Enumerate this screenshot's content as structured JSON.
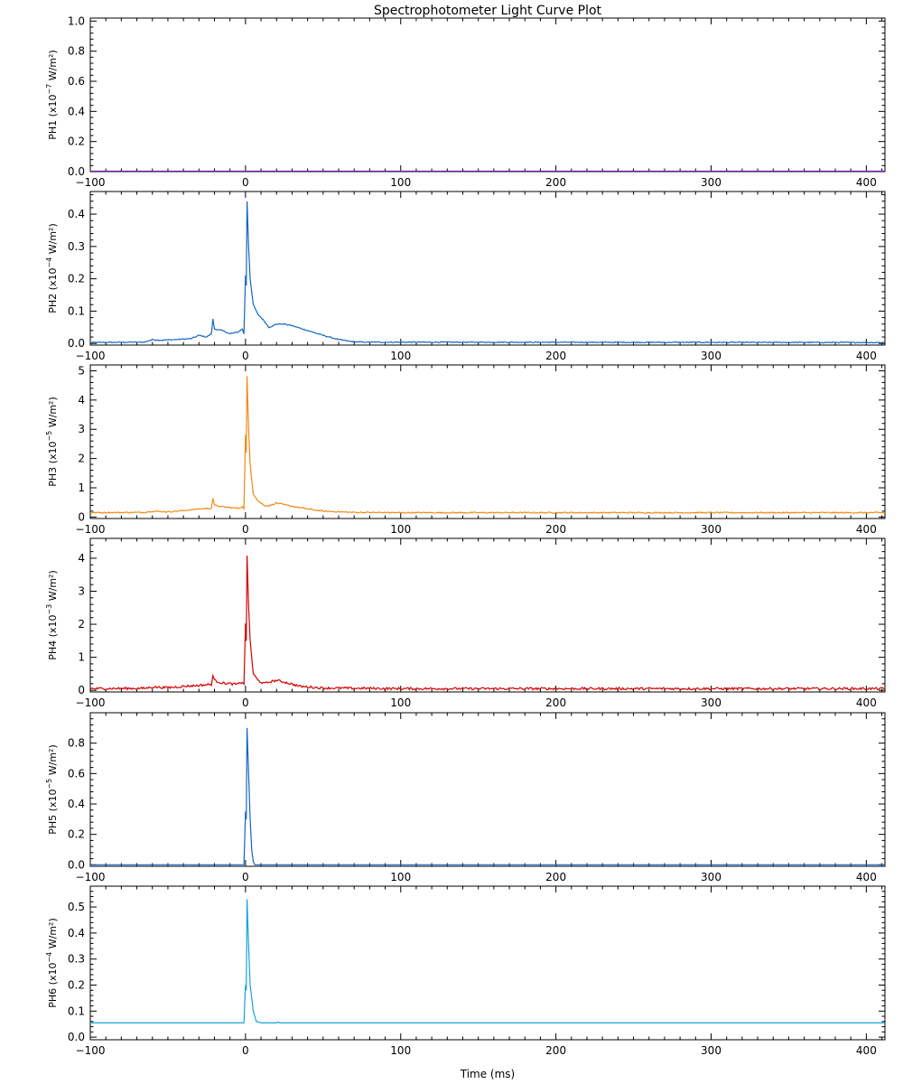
{
  "chart_data": {
    "type": "line",
    "title": "Spectrophotometer Light Curve Plot",
    "xlabel": "Time (ms)",
    "xlim": [
      -100,
      412
    ],
    "xticks": [
      -100,
      0,
      100,
      200,
      300,
      400
    ],
    "panels": [
      {
        "name": "PH1",
        "ylabel_prefix": "PH1   (x10",
        "ylabel_exp": "−7",
        "ylabel_suffix": " W/m²)",
        "ylim": [
          0,
          1.02
        ],
        "yticks": [
          0.0,
          0.2,
          0.4,
          0.6,
          0.8,
          1.0
        ],
        "tick_labels": [
          "0.0",
          "0.2",
          "0.4",
          "0.6",
          "0.8",
          "1.0"
        ],
        "color": "#7b1fa2",
        "baseline": 0.0,
        "noise": 0.0,
        "points": [
          [
            -100,
            0
          ],
          [
            412,
            0
          ]
        ]
      },
      {
        "name": "PH2",
        "ylabel_prefix": "PH2   (x10",
        "ylabel_exp": "−4",
        "ylabel_suffix": " W/m²)",
        "ylim": [
          -0.005,
          0.47
        ],
        "yticks": [
          0.0,
          0.1,
          0.2,
          0.3,
          0.4
        ],
        "tick_labels": [
          "0.0",
          "0.1",
          "0.2",
          "0.3",
          "0.4"
        ],
        "color": "#1565c0",
        "baseline": 0.003,
        "noise": 0.0015,
        "points": [
          [
            -100,
            0.003
          ],
          [
            -65,
            0.004
          ],
          [
            -60,
            0.012
          ],
          [
            -55,
            0.01
          ],
          [
            -45,
            0.012
          ],
          [
            -35,
            0.015
          ],
          [
            -30,
            0.025
          ],
          [
            -25,
            0.02
          ],
          [
            -22,
            0.03
          ],
          [
            -21,
            0.075
          ],
          [
            -20,
            0.045
          ],
          [
            -15,
            0.04
          ],
          [
            -10,
            0.03
          ],
          [
            -5,
            0.035
          ],
          [
            -2,
            0.045
          ],
          [
            -1,
            0.03
          ],
          [
            0,
            0.21
          ],
          [
            0.5,
            0.18
          ],
          [
            1,
            0.44
          ],
          [
            2,
            0.3
          ],
          [
            3,
            0.2
          ],
          [
            5,
            0.12
          ],
          [
            8,
            0.09
          ],
          [
            12,
            0.07
          ],
          [
            15,
            0.05
          ],
          [
            18,
            0.055
          ],
          [
            20,
            0.06
          ],
          [
            25,
            0.06
          ],
          [
            30,
            0.055
          ],
          [
            40,
            0.04
          ],
          [
            50,
            0.025
          ],
          [
            60,
            0.012
          ],
          [
            68,
            0.006
          ],
          [
            75,
            0.004
          ],
          [
            412,
            0.003
          ]
        ]
      },
      {
        "name": "PH3",
        "ylabel_prefix": "PH3   (x10",
        "ylabel_exp": "−5",
        "ylabel_suffix": " W/m²)",
        "ylim": [
          -0.05,
          5.2
        ],
        "yticks": [
          0,
          1,
          2,
          3,
          4,
          5
        ],
        "tick_labels": [
          "0",
          "1",
          "2",
          "3",
          "4",
          "5"
        ],
        "color": "#ef8a17",
        "baseline": 0.15,
        "noise": 0.02,
        "points": [
          [
            -100,
            0.15
          ],
          [
            -65,
            0.16
          ],
          [
            -60,
            0.2
          ],
          [
            -50,
            0.18
          ],
          [
            -40,
            0.22
          ],
          [
            -30,
            0.28
          ],
          [
            -22,
            0.3
          ],
          [
            -21,
            0.65
          ],
          [
            -20,
            0.4
          ],
          [
            -15,
            0.35
          ],
          [
            -5,
            0.3
          ],
          [
            -2,
            0.35
          ],
          [
            -1,
            0.3
          ],
          [
            0,
            2.8
          ],
          [
            0.5,
            2.2
          ],
          [
            1,
            4.8
          ],
          [
            2,
            3.0
          ],
          [
            3,
            1.8
          ],
          [
            5,
            0.8
          ],
          [
            8,
            0.55
          ],
          [
            12,
            0.4
          ],
          [
            15,
            0.38
          ],
          [
            20,
            0.48
          ],
          [
            25,
            0.42
          ],
          [
            35,
            0.32
          ],
          [
            50,
            0.2
          ],
          [
            70,
            0.16
          ],
          [
            100,
            0.15
          ],
          [
            412,
            0.15
          ]
        ]
      },
      {
        "name": "PH4",
        "ylabel_prefix": "PH4   (x10",
        "ylabel_exp": "−3",
        "ylabel_suffix": " W/m²)",
        "ylim": [
          -0.05,
          4.6
        ],
        "yticks": [
          0,
          1,
          2,
          3,
          4
        ],
        "tick_labels": [
          "0",
          "1",
          "2",
          "3",
          "4"
        ],
        "color": "#d50000",
        "baseline": 0.05,
        "noise": 0.035,
        "points": [
          [
            -100,
            0.05
          ],
          [
            -65,
            0.06
          ],
          [
            -60,
            0.1
          ],
          [
            -50,
            0.08
          ],
          [
            -40,
            0.12
          ],
          [
            -30,
            0.15
          ],
          [
            -22,
            0.18
          ],
          [
            -21,
            0.45
          ],
          [
            -20,
            0.3
          ],
          [
            -15,
            0.22
          ],
          [
            -5,
            0.18
          ],
          [
            -2,
            0.25
          ],
          [
            -1,
            0.2
          ],
          [
            0,
            2.0
          ],
          [
            0.5,
            1.5
          ],
          [
            1,
            4.1
          ],
          [
            2,
            2.5
          ],
          [
            3,
            1.5
          ],
          [
            5,
            0.5
          ],
          [
            8,
            0.3
          ],
          [
            12,
            0.2
          ],
          [
            15,
            0.25
          ],
          [
            20,
            0.3
          ],
          [
            25,
            0.25
          ],
          [
            35,
            0.12
          ],
          [
            50,
            0.07
          ],
          [
            100,
            0.05
          ],
          [
            412,
            0.05
          ]
        ]
      },
      {
        "name": "PH5",
        "ylabel_prefix": "PH5   (x10",
        "ylabel_exp": "−5",
        "ylabel_suffix": " W/m²)",
        "ylim": [
          -0.01,
          1.0
        ],
        "yticks": [
          0.0,
          0.2,
          0.4,
          0.6,
          0.8
        ],
        "tick_labels": [
          "0.0",
          "0.2",
          "0.4",
          "0.6",
          "0.8"
        ],
        "color": "#1565c0",
        "baseline": 0.0,
        "noise": 0.0,
        "points": [
          [
            -100,
            0
          ],
          [
            -1,
            0
          ],
          [
            0,
            0.35
          ],
          [
            0.5,
            0.3
          ],
          [
            1,
            0.9
          ],
          [
            2,
            0.6
          ],
          [
            3,
            0.3
          ],
          [
            4,
            0.1
          ],
          [
            5,
            0.02
          ],
          [
            6,
            0.0
          ],
          [
            412,
            0
          ]
        ]
      },
      {
        "name": "PH6",
        "ylabel_prefix": "PH6   (x10",
        "ylabel_exp": "−4",
        "ylabel_suffix": " W/m²)",
        "ylim": [
          -0.01,
          0.58
        ],
        "yticks": [
          0.0,
          0.1,
          0.2,
          0.3,
          0.4,
          0.5
        ],
        "tick_labels": [
          "0.0",
          "0.1",
          "0.2",
          "0.3",
          "0.4",
          "0.5"
        ],
        "color": "#12a4dc",
        "baseline": 0.055,
        "noise": 0.0,
        "points": [
          [
            -100,
            0.055
          ],
          [
            -1,
            0.055
          ],
          [
            0,
            0.2
          ],
          [
            0.5,
            0.18
          ],
          [
            1,
            0.53
          ],
          [
            2,
            0.35
          ],
          [
            3,
            0.2
          ],
          [
            5,
            0.1
          ],
          [
            7,
            0.06
          ],
          [
            10,
            0.055
          ],
          [
            20,
            0.055
          ],
          [
            21,
            0.058
          ],
          [
            22,
            0.055
          ],
          [
            412,
            0.055
          ]
        ]
      }
    ]
  }
}
